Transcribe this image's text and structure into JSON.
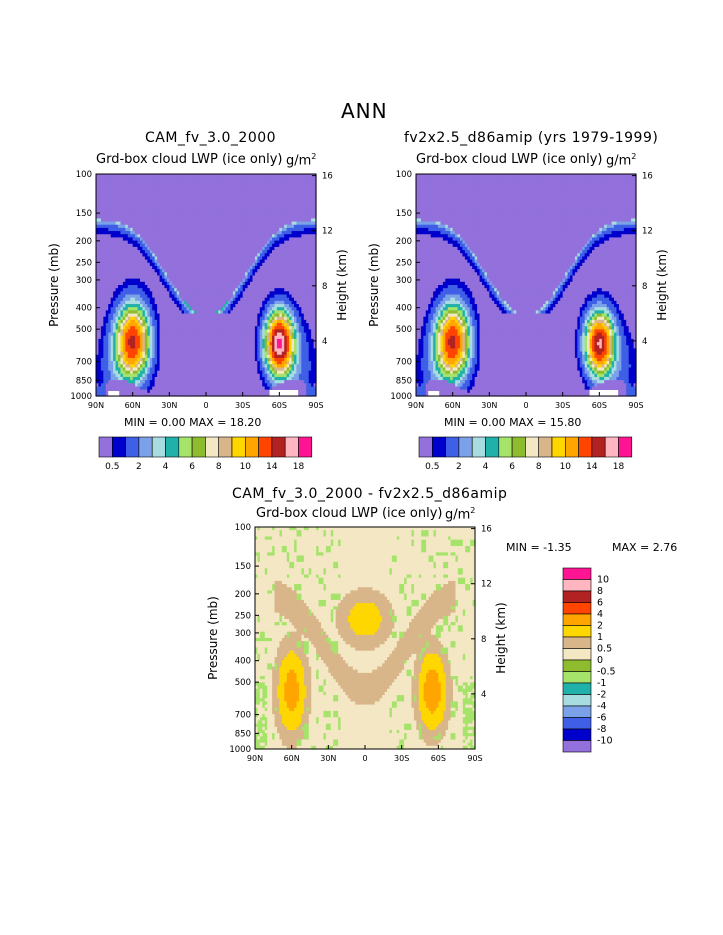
{
  "page_title": "ANN",
  "colors": {
    "c00": "#9370db",
    "c01": "#0000cd",
    "c02": "#3f5fe6",
    "c03": "#7ba2e8",
    "c04": "#a7dde0",
    "c05": "#20b2aa",
    "c06": "#a6e36b",
    "c07": "#8fbc2f",
    "c08": "#f4e7c4",
    "c09": "#d9b58a",
    "c10": "#ffd700",
    "c11": "#ffa500",
    "c12": "#ff4500",
    "c13": "#b22222",
    "c14": "#ffb6c1",
    "c15": "#ff1493"
  },
  "chart_data": [
    {
      "id": "panel1",
      "type": "heatmap",
      "title": "CAM_fv_3.0_2000",
      "subtitle": "Grd-box cloud LWP (ice only)",
      "units": "g/m",
      "units_sup": "2",
      "ylabel": "Pressure (mb)",
      "y2label": "Height (km)",
      "x_ticks": [
        "90N",
        "60N",
        "30N",
        "0",
        "30S",
        "60S",
        "90S"
      ],
      "y_ticks": [
        "100",
        "150",
        "200",
        "250",
        "300",
        "400",
        "500",
        "700",
        "850",
        "1000"
      ],
      "y2_ticks": [
        "16",
        "12",
        "8",
        "4"
      ],
      "stats": "MIN =    0.00   MAX =   18.20",
      "peaks": [
        {
          "lat": -60,
          "p": 570,
          "value": 18.2
        },
        {
          "lat": 60,
          "p": 560,
          "value": 14
        },
        {
          "lat": 8,
          "p": 315,
          "value": 10
        },
        {
          "lat": -8,
          "p": 315,
          "value": 10
        }
      ]
    },
    {
      "id": "panel2",
      "type": "heatmap",
      "title": "fv2x2.5_d86amip (yrs 1979-1999)",
      "subtitle": "Grd-box cloud LWP (ice only)",
      "units": "g/m",
      "units_sup": "2",
      "ylabel": "Pressure (mb)",
      "y2label": "Height (km)",
      "x_ticks": [
        "90N",
        "60N",
        "30N",
        "0",
        "30S",
        "60S",
        "90S"
      ],
      "y_ticks": [
        "100",
        "150",
        "200",
        "250",
        "300",
        "400",
        "500",
        "700",
        "850",
        "1000"
      ],
      "y2_ticks": [
        "16",
        "12",
        "8",
        "4"
      ],
      "stats": "MIN =    0.00   MAX =   15.80",
      "peaks": [
        {
          "lat": -60,
          "p": 570,
          "value": 15.8
        },
        {
          "lat": 60,
          "p": 560,
          "value": 14
        },
        {
          "lat": 0,
          "p": 315,
          "value": 4
        }
      ]
    },
    {
      "id": "panel3",
      "type": "heatmap",
      "title": "CAM_fv_3.0_2000 - fv2x2.5_d86amip",
      "subtitle": "Grd-box cloud LWP (ice only)",
      "units": "g/m",
      "units_sup": "2",
      "ylabel": "Pressure (mb)",
      "y2label": "Height (km)",
      "x_ticks": [
        "90N",
        "60N",
        "30N",
        "0",
        "30S",
        "60S",
        "90S"
      ],
      "y_ticks": [
        "100",
        "150",
        "200",
        "250",
        "300",
        "400",
        "500",
        "700",
        "850",
        "1000"
      ],
      "y2_ticks": [
        "16",
        "12",
        "8",
        "4"
      ],
      "stats_min": "MIN =    -1.35",
      "stats_max": "MAX =    2.76",
      "peaks": [
        {
          "lat": 60,
          "p": 560,
          "value": 2.5
        },
        {
          "lat": -55,
          "p": 560,
          "value": 2.76
        },
        {
          "lat": 0,
          "p": 260,
          "value": 1.2
        }
      ]
    }
  ],
  "colorbar_top": {
    "levels": [
      "0.5",
      "2",
      "4",
      "6",
      "8",
      "10",
      "14",
      "18"
    ],
    "values": [
      0.5,
      1,
      2,
      3,
      4,
      5,
      6,
      7,
      8,
      9,
      10,
      12,
      14,
      16,
      18
    ]
  },
  "colorbar_diff": {
    "levels": [
      "10",
      "8",
      "6",
      "4",
      "2",
      "1",
      "0.5",
      "0",
      "-0.5",
      "-1",
      "-2",
      "-4",
      "-6",
      "-8",
      "-10"
    ]
  }
}
